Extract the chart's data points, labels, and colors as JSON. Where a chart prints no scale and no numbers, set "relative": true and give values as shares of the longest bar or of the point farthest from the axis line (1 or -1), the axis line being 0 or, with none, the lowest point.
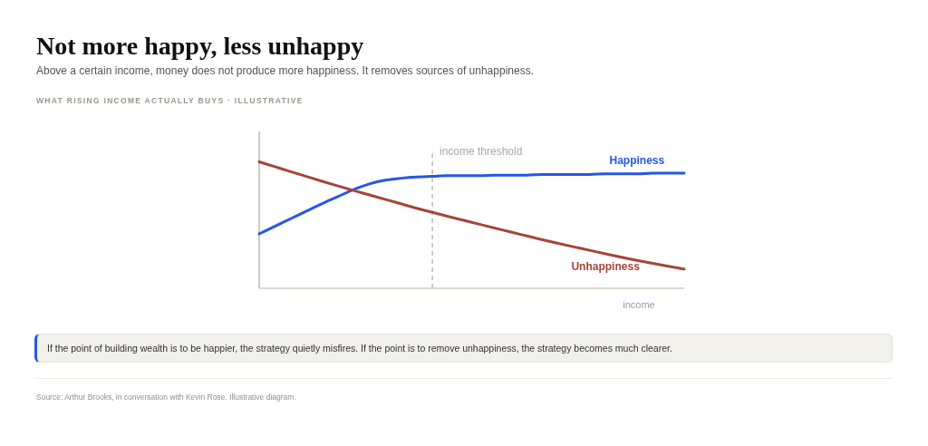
{
  "chart_data": {
    "type": "line",
    "title": "Not more happy, less unhappy",
    "subtitle": "Above a certain income, money does not produce more happiness. It removes sources of unhappiness.",
    "xlabel": "income",
    "categories": [
      null,
      null,
      null,
      null,
      null,
      null,
      null,
      null,
      null,
      null,
      null,
      null,
      null,
      null,
      null,
      null,
      null,
      null,
      null,
      null,
      null,
      null,
      null,
      null,
      null,
      null,
      null,
      null
    ],
    "relative": true,
    "series": [
      {
        "name": "Happiness",
        "color": "#2457e6",
        "values": [
          0.43,
          0.49,
          0.55,
          0.61,
          0.67,
          0.725,
          0.78,
          0.825,
          0.855,
          0.87,
          0.88,
          0.885,
          0.89,
          0.89,
          0.89,
          0.895,
          0.895,
          0.895,
          0.9,
          0.9,
          0.9,
          0.9,
          0.905,
          0.905,
          0.905,
          0.91,
          0.91,
          0.91
        ]
      },
      {
        "name": "Unhappiness",
        "color": "#a6443a",
        "values": [
          1,
          0.961,
          0.922,
          0.884,
          0.846,
          0.809,
          0.773,
          0.738,
          0.703,
          0.668,
          0.633,
          0.6,
          0.568,
          0.537,
          0.506,
          0.475,
          0.444,
          0.414,
          0.384,
          0.355,
          0.327,
          0.3,
          0.272,
          0.246,
          0.221,
          0.197,
          0.174,
          0.152
        ]
      }
    ],
    "annotations": [
      "WHAT RISING INCOME ACTUALLY BUYS · ILLUSTRATIVE",
      "income threshold",
      "If the point of building wealth is to be happier, the strategy quietly misfires. If the point is to remove unhappiness, the strategy becomes much clearer.",
      "Source: Arthur Brooks, in conversation with Kevin Rose. Illustrative diagram."
    ],
    "grid": false,
    "legend": false,
    "marker": "none",
    "line_style": "solid"
  }
}
